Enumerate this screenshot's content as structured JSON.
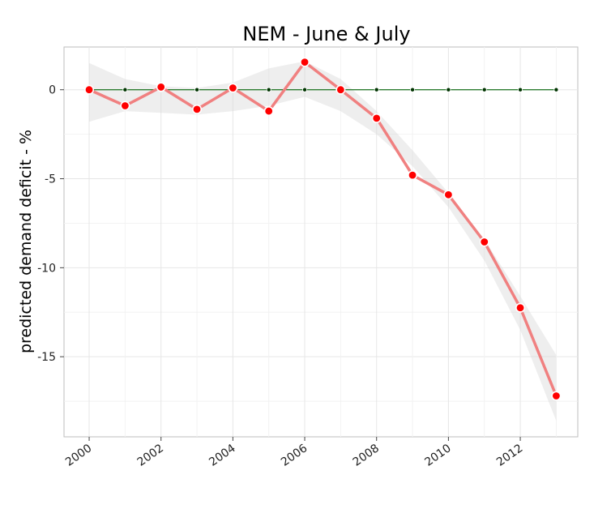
{
  "chart_data": {
    "type": "line",
    "title": "NEM - June & July",
    "xlabel": "",
    "ylabel": "predicted demand deficit - %",
    "x": [
      2000,
      2001,
      2002,
      2003,
      2004,
      2005,
      2006,
      2007,
      2008,
      2009,
      2010,
      2011,
      2012,
      2013
    ],
    "xlim": [
      1999.3,
      2013.6
    ],
    "ylim": [
      -19.5,
      2.4
    ],
    "x_ticks": [
      2000,
      2002,
      2004,
      2006,
      2008,
      2010,
      2012
    ],
    "x_tick_labels": [
      "2000",
      "2002",
      "2004",
      "2006",
      "2008",
      "2010",
      "2012"
    ],
    "y_ticks": [
      0,
      -5,
      -10,
      -15
    ],
    "y_tick_labels": [
      "0",
      "-5",
      "-10",
      "-15"
    ],
    "grid": true,
    "legend": "none",
    "series": [
      {
        "values": [
          0,
          -0.9,
          0.15,
          -1.1,
          0.1,
          -1.2,
          1.55,
          0.0,
          -1.6,
          -4.8,
          -5.9,
          -8.55,
          -12.25,
          -17.2
        ],
        "color": "#f08080",
        "marker_color": "#ff0000"
      },
      {
        "values": [
          0,
          0,
          0,
          0,
          0,
          0,
          0,
          0,
          0,
          0,
          0,
          0,
          0,
          0
        ],
        "color": "#2e7d32",
        "marker_color": "#003300"
      }
    ],
    "smooth_band": {
      "color": "#d9d9d9",
      "x": [
        2000,
        2001,
        2002,
        2003,
        2004,
        2005,
        2006,
        2007,
        2008,
        2009,
        2010,
        2011,
        2012,
        2013
      ],
      "upper": [
        1.5,
        0.6,
        0.2,
        0.1,
        0.4,
        1.2,
        1.6,
        0.6,
        -1.2,
        -3.4,
        -5.8,
        -8.4,
        -11.6,
        -14.9
      ],
      "lower": [
        -1.8,
        -1.2,
        -1.3,
        -1.4,
        -1.2,
        -0.9,
        -0.4,
        -1.2,
        -2.5,
        -4.3,
        -6.6,
        -9.6,
        -13.5,
        -18.6
      ]
    }
  }
}
